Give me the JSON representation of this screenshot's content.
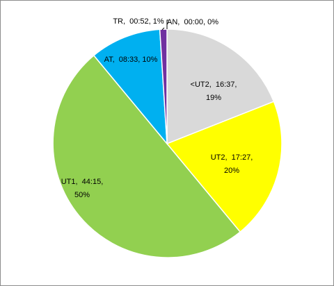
{
  "chart_data": {
    "type": "pie",
    "title": "",
    "slices": [
      {
        "category": "<UT2",
        "duration": "16:37",
        "percent": 19,
        "color": "#d9d9d9",
        "label_line1": "<UT2,  16:37,",
        "label_line2": "19%"
      },
      {
        "category": "UT2",
        "duration": "17:27",
        "percent": 20,
        "color": "#ffff00",
        "label_line1": "UT2,  17:27,",
        "label_line2": "20%"
      },
      {
        "category": "UT1",
        "duration": "44:15",
        "percent": 50,
        "color": "#92d050",
        "label_line1": "UT1,  44:15,",
        "label_line2": "50%"
      },
      {
        "category": "AT",
        "duration": "08:33",
        "percent": 10,
        "color": "#00b0f0",
        "label_line1": "AT,  08:33, 10%",
        "label_line2": ""
      },
      {
        "category": "TR",
        "duration": "00:52",
        "percent": 1,
        "color": "#7030a0",
        "label_line1": "TR,  00:52, 1%",
        "label_line2": ""
      },
      {
        "category": "AN",
        "duration": "00:00",
        "percent": 0,
        "color": "#000000",
        "label_line1": "AN,  00:00, 0%",
        "label_line2": ""
      }
    ],
    "slice_border_color": "#ffffff",
    "legend": "none"
  }
}
